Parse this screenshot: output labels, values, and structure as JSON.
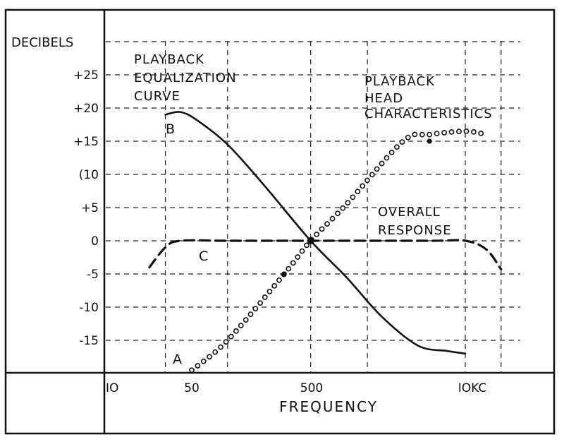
{
  "chart_data": {
    "type": "line",
    "ylabel": "DECIBELS",
    "xlabel": "FREQUENCY",
    "x_scale": "log",
    "y_ticks": [
      "+25",
      "+20",
      "+15",
      "(10",
      "+5",
      "0",
      "-5",
      "-10",
      "-15"
    ],
    "y_tick_values": [
      25,
      20,
      15,
      10,
      5,
      0,
      -5,
      -10,
      -15
    ],
    "x_ticks": [
      "IO",
      "50",
      "500",
      "IOKC"
    ],
    "x_tick_values": [
      10,
      50,
      500,
      10000
    ],
    "grid": true,
    "series": [
      {
        "name": "PLAYBACK EQUALIZATION CURVE",
        "marker": "B",
        "style": "solid",
        "x": [
          30,
          40,
          55,
          100,
          200,
          500,
          1000,
          2000,
          4000,
          7000,
          10000
        ],
        "y": [
          19,
          19.4,
          18.2,
          14.5,
          8.5,
          0,
          -5.5,
          -11.5,
          -15.8,
          -16.6,
          -17
        ]
      },
      {
        "name": "PLAYBACK HEAD CHARACTERISTICS",
        "marker": "A",
        "style": "dotted",
        "x": [
          50,
          100,
          300,
          500,
          1000,
          3000,
          5000,
          10000,
          15000
        ],
        "y": [
          -19.5,
          -15,
          -5,
          0,
          5.5,
          15,
          16,
          16.5,
          16
        ]
      },
      {
        "name": "OVERALL RESPONSE",
        "marker": "C",
        "style": "dashed",
        "x": [
          22,
          30,
          40,
          100,
          500,
          5000,
          10000,
          15000,
          20000
        ],
        "y": [
          -4,
          -1,
          0,
          0,
          0,
          0,
          0,
          -1.3,
          -4.3
        ]
      }
    ],
    "annotations": [
      {
        "text_lines": [
          "PLAYBACK",
          "EQUALIZATION",
          "CURVE"
        ]
      },
      {
        "text_lines": [
          "PLAYBACK",
          "HEAD",
          "CHARACTERISTICS"
        ]
      },
      {
        "text_lines": [
          "OVERALL",
          "RESPONSE"
        ]
      },
      {
        "text": "B"
      },
      {
        "text": "A"
      },
      {
        "text": "C"
      }
    ]
  }
}
